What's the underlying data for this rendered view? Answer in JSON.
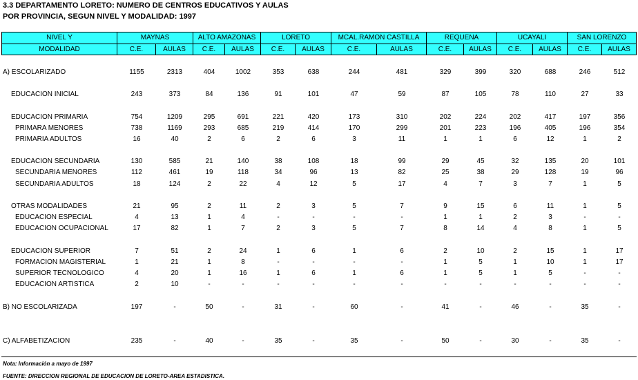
{
  "header": {
    "title": "3.3  DEPARTAMENTO  LORETO:  NUMERO DE CENTROS EDUCATIVOS Y AULAS",
    "subtitle": "POR PROVINCIA, SEGUN NIVEL Y MODALIDAD: 1997"
  },
  "table": {
    "label_header": [
      "NIVEL Y",
      "MODALIDAD"
    ],
    "provinces": [
      "MAYNAS",
      "ALTO AMAZONAS",
      "LORETO",
      "MCAL.RAMON CASTILLA",
      "REQUENA",
      "UCAYALI",
      "SAN LORENZO"
    ],
    "subheaders": [
      "C.E.",
      "AULAS"
    ],
    "rows": [
      [
        "A)  ESCOLARIZADO",
        1155,
        2313,
        404,
        1002,
        353,
        638,
        244,
        481,
        329,
        399,
        320,
        688,
        246,
        512
      ],
      [
        "EDUCACION INICIAL",
        243,
        373,
        84,
        136,
        91,
        101,
        47,
        59,
        87,
        105,
        78,
        110,
        27,
        33
      ],
      [
        "EDUCACION PRIMARIA",
        754,
        1209,
        295,
        691,
        221,
        420,
        173,
        310,
        202,
        224,
        202,
        417,
        197,
        356
      ],
      [
        "PRIMARA MENORES",
        738,
        1169,
        293,
        685,
        219,
        414,
        170,
        299,
        201,
        223,
        196,
        405,
        196,
        354
      ],
      [
        "PRIMARIA ADULTOS",
        16,
        40,
        2,
        6,
        2,
        6,
        3,
        11,
        1,
        1,
        6,
        12,
        1,
        2
      ],
      [
        "EDUCACION SECUNDARIA",
        130,
        585,
        21,
        140,
        38,
        108,
        18,
        99,
        29,
        45,
        32,
        135,
        20,
        101
      ],
      [
        "SECUNDARIA MENORES",
        112,
        461,
        19,
        118,
        34,
        96,
        13,
        82,
        25,
        38,
        29,
        128,
        19,
        96
      ],
      [
        "SECUNDARIA ADULTOS",
        18,
        124,
        2,
        22,
        4,
        12,
        5,
        17,
        4,
        7,
        3,
        7,
        1,
        5
      ],
      [
        "OTRAS MODALIDADES",
        21,
        95,
        2,
        11,
        2,
        3,
        5,
        7,
        9,
        15,
        6,
        11,
        1,
        5
      ],
      [
        "EDUCACION ESPECIAL",
        4,
        13,
        1,
        4,
        "-",
        "-",
        "-",
        "-",
        1,
        1,
        2,
        3,
        "-",
        "-"
      ],
      [
        "EDUCACION OCUPACIONAL",
        17,
        82,
        1,
        7,
        2,
        3,
        5,
        7,
        8,
        14,
        4,
        8,
        1,
        5
      ],
      [
        "EDUCACION SUPERIOR",
        7,
        51,
        2,
        24,
        1,
        6,
        1,
        6,
        2,
        10,
        2,
        15,
        1,
        17
      ],
      [
        "FORMACION MAGISTERIAL",
        1,
        21,
        1,
        8,
        "-",
        "-",
        "-",
        "-",
        1,
        5,
        1,
        10,
        1,
        17
      ],
      [
        "SUPERIOR TECNOLOGICO",
        4,
        20,
        1,
        16,
        1,
        6,
        1,
        6,
        1,
        5,
        1,
        5,
        "-",
        "-"
      ],
      [
        "EDUCACION ARTISTICA",
        2,
        10,
        "-",
        "-",
        "-",
        "-",
        "-",
        "-",
        "-",
        "-",
        "-",
        "-",
        "-",
        "-"
      ],
      [
        "B)  NO ESCOLARIZADA",
        197,
        "-",
        50,
        "-",
        31,
        "-",
        60,
        "-",
        41,
        "-",
        46,
        "-",
        35,
        "-"
      ],
      [
        "C)  ALFABETIZACION",
        235,
        "-",
        40,
        "-",
        35,
        "-",
        35,
        "-",
        50,
        "-",
        30,
        "-",
        35,
        "-"
      ]
    ]
  },
  "footer": {
    "note": "Nota:  Información a mayo de 1997",
    "source": "FUENTE:  DIRECCION REGIONAL DE EDUCACION DE LORETO-AREA ESTADISTICA."
  }
}
